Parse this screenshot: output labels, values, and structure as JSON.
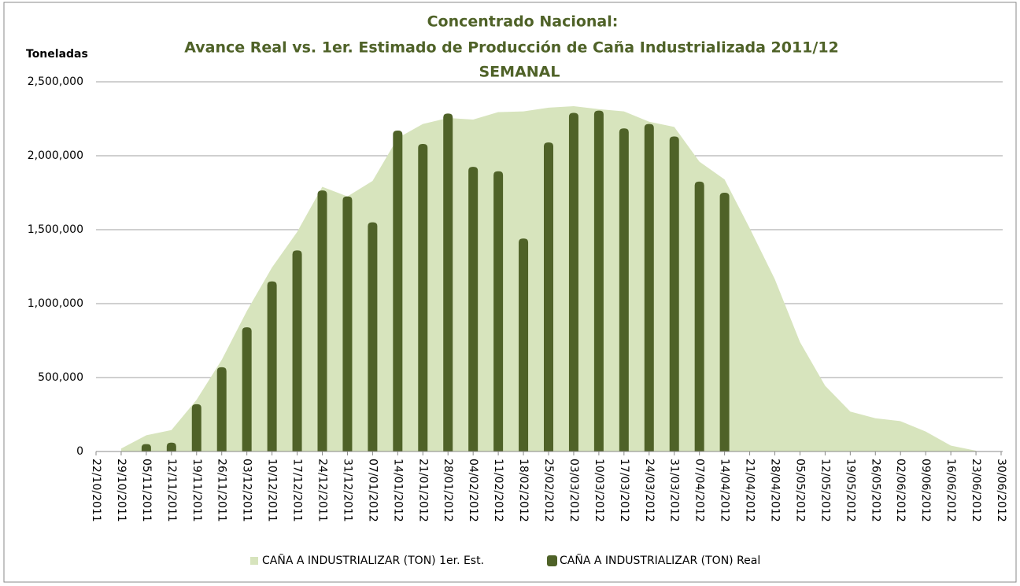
{
  "chart_data": {
    "type": "bar_area",
    "title": "Concentrado Nacional:",
    "subtitle": "Avance Real vs. 1er. Estimado de Producción de Caña Industrializada 2011/12",
    "subtitle2": "SEMANAL",
    "y_label": "Toneladas",
    "categories": [
      "22/10/2011",
      "29/10/2011",
      "05/11/2011",
      "12/11/2011",
      "19/11/2011",
      "26/11/2011",
      "03/12/2011",
      "10/12/2011",
      "17/12/2011",
      "24/12/2011",
      "31/12/2011",
      "07/01/2012",
      "14/01/2012",
      "21/01/2012",
      "28/01/2012",
      "04/02/2012",
      "11/02/2012",
      "18/02/2012",
      "25/02/2012",
      "03/03/2012",
      "10/03/2012",
      "17/03/2012",
      "24/03/2012",
      "31/03/2012",
      "07/04/2012",
      "14/04/2012",
      "21/04/2012",
      "28/04/2012",
      "05/05/2012",
      "12/05/2012",
      "19/05/2012",
      "26/05/2012",
      "02/06/2012",
      "09/06/2012",
      "16/06/2012",
      "23/06/2012",
      "30/06/2012"
    ],
    "series": [
      {
        "name": "CAÑA A INDUSTRIALIZAR (TON) 1er. Est.",
        "color": "#d7e4bd",
        "kind": "area",
        "values": [
          null,
          20000,
          110000,
          145000,
          350000,
          620000,
          950000,
          1245000,
          1485000,
          1790000,
          1725000,
          1830000,
          2120000,
          2215000,
          2255000,
          2245000,
          2295000,
          2300000,
          2325000,
          2335000,
          2315000,
          2300000,
          2230000,
          2195000,
          1960000,
          1840000,
          1510000,
          1165000,
          740000,
          445000,
          270000,
          225000,
          205000,
          135000,
          40000,
          5000,
          null
        ]
      },
      {
        "name": "CAÑA A INDUSTRIALIZAR (TON) Real",
        "color": "#4f6228",
        "kind": "bar",
        "values": [
          null,
          null,
          50000,
          60000,
          320000,
          570000,
          840000,
          1150000,
          1360000,
          1765000,
          1725000,
          1550000,
          2170000,
          2080000,
          2285000,
          1925000,
          1895000,
          1440000,
          2090000,
          2290000,
          2305000,
          2185000,
          2215000,
          2130000,
          1825000,
          1750000,
          null,
          null,
          null,
          null,
          null,
          null,
          null,
          null,
          null,
          null,
          null
        ]
      }
    ],
    "ylim": [
      0,
      2500000
    ],
    "yticks": [
      0,
      {
        "value": 500000,
        "label": "500,000"
      },
      {
        "value": 1000000,
        "label": "1,000,000"
      },
      {
        "value": 1500000,
        "label": "1,500,000"
      },
      {
        "value": 2000000,
        "label": "2,000,000"
      },
      {
        "value": 2500000,
        "label": "2,500,000"
      }
    ],
    "grid": true,
    "legend": "bottom"
  }
}
